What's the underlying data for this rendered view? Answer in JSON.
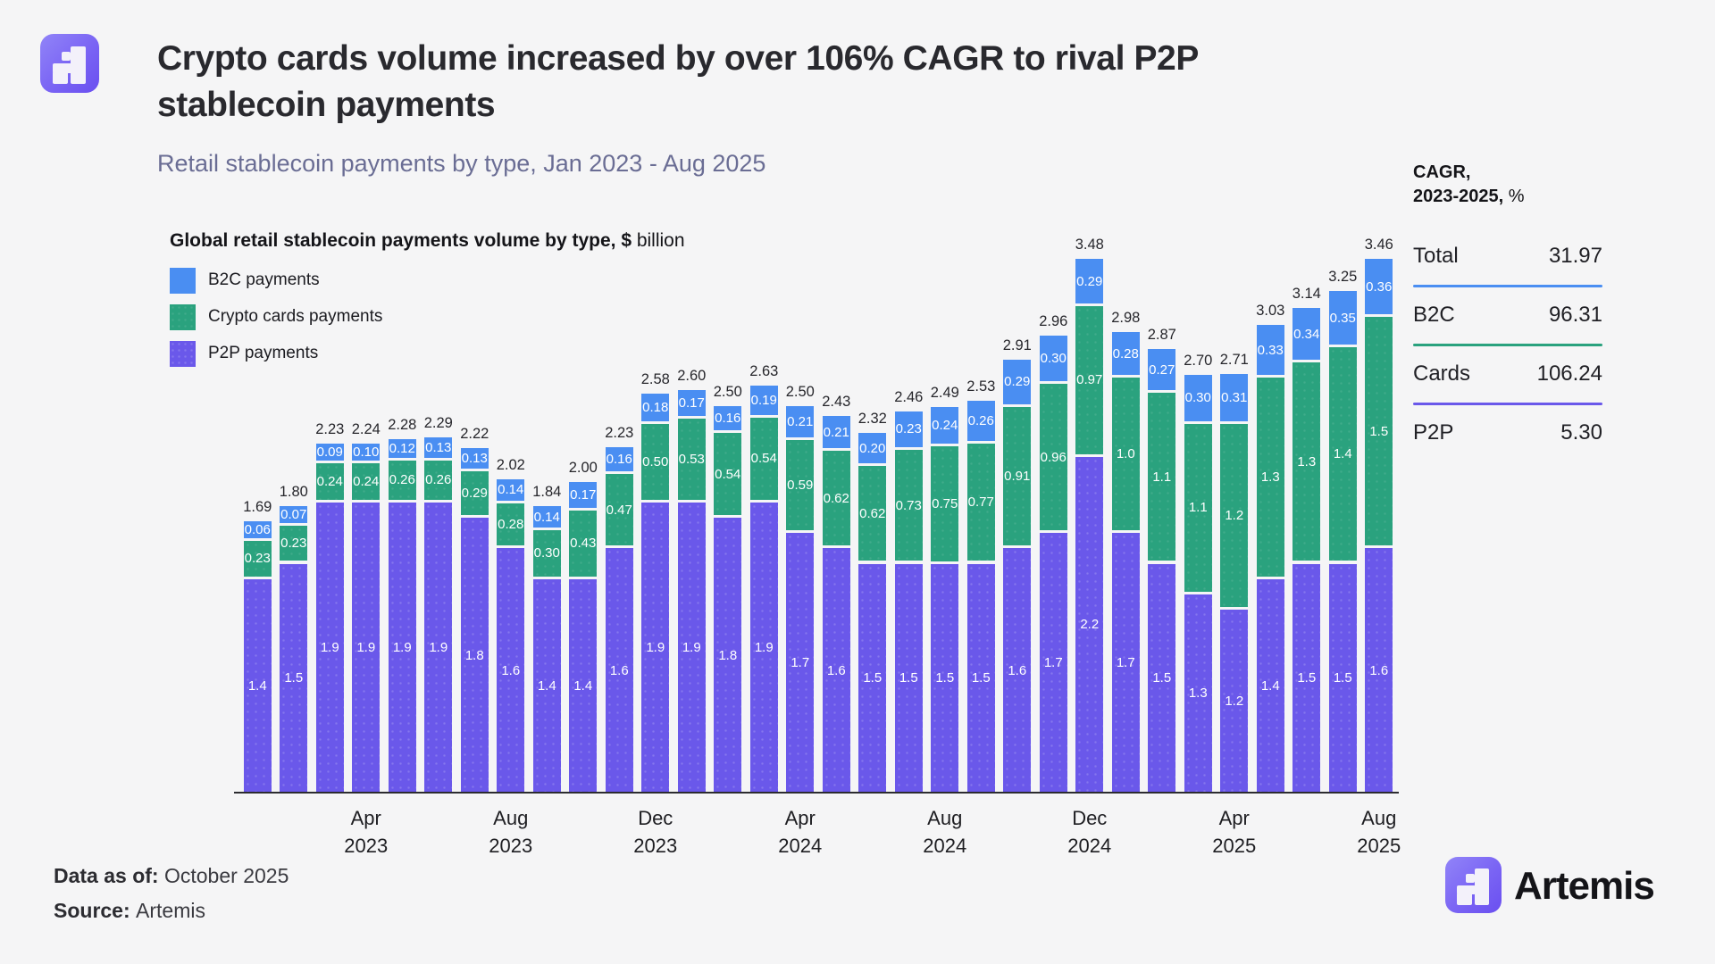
{
  "page": {
    "title_line1": "Crypto cards volume increased by over 106% CAGR to rival P2P",
    "title_line2": "stablecoin payments",
    "subtitle": "Retail stablecoin payments by type, Jan 2023 - Aug 2025"
  },
  "cagr_panel": {
    "header_line1": "CAGR,",
    "header_line2_bold": "2023-2025,",
    "header_line2_suffix": " %",
    "rows": [
      {
        "label": "Total",
        "value": "31.97",
        "divider_above": null
      },
      {
        "label": "B2C",
        "value": "96.31",
        "divider_above": "#4a8ef2"
      },
      {
        "label": "Cards",
        "value": "106.24",
        "divider_above": "#2aa27e"
      },
      {
        "label": "P2P",
        "value": "5.30",
        "divider_above": "#6a58ea"
      }
    ]
  },
  "chart_data": {
    "type": "bar",
    "stacked": true,
    "title_bold": "Global retail stablecoin payments volume by type, $",
    "title_suffix": " billion",
    "ylabel": "$ billion",
    "grid": false,
    "legend_position": "top-left",
    "legend": [
      {
        "key": "b2c",
        "name": "B2C payments",
        "color": "#4a8ef2"
      },
      {
        "key": "cards",
        "name": "Crypto cards payments",
        "color": "#2aa27e"
      },
      {
        "key": "p2p",
        "name": "P2P payments",
        "color": "#6a58ea"
      }
    ],
    "bars": [
      {
        "month": "Jan",
        "year": "2023",
        "total": "1.69",
        "b2c": "0.06",
        "cards": "0.23",
        "p2p": "1.4"
      },
      {
        "month": "Feb",
        "year": "2023",
        "total": "1.80",
        "b2c": "0.07",
        "cards": "0.23",
        "p2p": "1.5"
      },
      {
        "month": "Mar",
        "year": "2023",
        "total": "2.23",
        "b2c": "0.09",
        "cards": "0.24",
        "p2p": "1.9"
      },
      {
        "month": "Apr",
        "year": "2023",
        "total": "2.24",
        "b2c": "0.10",
        "cards": "0.24",
        "p2p": "1.9"
      },
      {
        "month": "May",
        "year": "2023",
        "total": "2.28",
        "b2c": "0.12",
        "cards": "0.26",
        "p2p": "1.9"
      },
      {
        "month": "Jun",
        "year": "2023",
        "total": "2.29",
        "b2c": "0.13",
        "cards": "0.26",
        "p2p": "1.9"
      },
      {
        "month": "Jul",
        "year": "2023",
        "total": "2.22",
        "b2c": "0.13",
        "cards": "0.29",
        "p2p": "1.8"
      },
      {
        "month": "Aug",
        "year": "2023",
        "total": "2.02",
        "b2c": "0.14",
        "cards": "0.28",
        "p2p": "1.6"
      },
      {
        "month": "Sep",
        "year": "2023",
        "total": "1.84",
        "b2c": "0.14",
        "cards": "0.30",
        "p2p": "1.4"
      },
      {
        "month": "Oct",
        "year": "2023",
        "total": "2.00",
        "b2c": "0.17",
        "cards": "0.43",
        "p2p": "1.4"
      },
      {
        "month": "Nov",
        "year": "2023",
        "total": "2.23",
        "b2c": "0.16",
        "cards": "0.47",
        "p2p": "1.6"
      },
      {
        "month": "Dec",
        "year": "2023",
        "total": "2.58",
        "b2c": "0.18",
        "cards": "0.50",
        "p2p": "1.9"
      },
      {
        "month": "Jan",
        "year": "2024",
        "total": "2.60",
        "b2c": "0.17",
        "cards": "0.53",
        "p2p": "1.9"
      },
      {
        "month": "Feb",
        "year": "2024",
        "total": "2.50",
        "b2c": "0.16",
        "cards": "0.54",
        "p2p": "1.8"
      },
      {
        "month": "Mar",
        "year": "2024",
        "total": "2.63",
        "b2c": "0.19",
        "cards": "0.54",
        "p2p": "1.9"
      },
      {
        "month": "Apr",
        "year": "2024",
        "total": "2.50",
        "b2c": "0.21",
        "cards": "0.59",
        "p2p": "1.7"
      },
      {
        "month": "May",
        "year": "2024",
        "total": "2.43",
        "b2c": "0.21",
        "cards": "0.62",
        "p2p": "1.6"
      },
      {
        "month": "Jun",
        "year": "2024",
        "total": "2.32",
        "b2c": "0.20",
        "cards": "0.62",
        "p2p": "1.5"
      },
      {
        "month": "Jul",
        "year": "2024",
        "total": "2.46",
        "b2c": "0.23",
        "cards": "0.73",
        "p2p": "1.5"
      },
      {
        "month": "Aug",
        "year": "2024",
        "total": "2.49",
        "b2c": "0.24",
        "cards": "0.75",
        "p2p": "1.5"
      },
      {
        "month": "Sep",
        "year": "2024",
        "total": "2.53",
        "b2c": "0.26",
        "cards": "0.77",
        "p2p": "1.5"
      },
      {
        "month": "Oct",
        "year": "2024",
        "total": "2.91",
        "b2c": "0.29",
        "cards": "0.91",
        "p2p": "1.6"
      },
      {
        "month": "Nov",
        "year": "2024",
        "total": "2.96",
        "b2c": "0.30",
        "cards": "0.96",
        "p2p": "1.7"
      },
      {
        "month": "Dec",
        "year": "2024",
        "total": "3.48",
        "b2c": "0.29",
        "cards": "0.97",
        "p2p": "2.2"
      },
      {
        "month": "Jan",
        "year": "2025",
        "total": "2.98",
        "b2c": "0.28",
        "cards": "1.0",
        "p2p": "1.7"
      },
      {
        "month": "Feb",
        "year": "2025",
        "total": "2.87",
        "b2c": "0.27",
        "cards": "1.1",
        "p2p": "1.5"
      },
      {
        "month": "Mar",
        "year": "2025",
        "total": "2.70",
        "b2c": "0.30",
        "cards": "1.1",
        "p2p": "1.3"
      },
      {
        "month": "Apr",
        "year": "2025",
        "total": "2.71",
        "b2c": "0.31",
        "cards": "1.2",
        "p2p": "1.2"
      },
      {
        "month": "May",
        "year": "2025",
        "total": "3.03",
        "b2c": "0.33",
        "cards": "1.3",
        "p2p": "1.4"
      },
      {
        "month": "Jun",
        "year": "2025",
        "total": "3.14",
        "b2c": "0.34",
        "cards": "1.3",
        "p2p": "1.5"
      },
      {
        "month": "Jul",
        "year": "2025",
        "total": "3.25",
        "b2c": "0.35",
        "cards": "1.4",
        "p2p": "1.5"
      },
      {
        "month": "Aug",
        "year": "2025",
        "total": "3.46",
        "b2c": "0.36",
        "cards": "1.5",
        "p2p": "1.6"
      }
    ],
    "x_ticks": [
      {
        "bar_index": 3,
        "month": "Apr",
        "year": "2023"
      },
      {
        "bar_index": 7,
        "month": "Aug",
        "year": "2023"
      },
      {
        "bar_index": 11,
        "month": "Dec",
        "year": "2023"
      },
      {
        "bar_index": 15,
        "month": "Apr",
        "year": "2024"
      },
      {
        "bar_index": 19,
        "month": "Aug",
        "year": "2024"
      },
      {
        "bar_index": 23,
        "month": "Dec",
        "year": "2024"
      },
      {
        "bar_index": 27,
        "month": "Apr",
        "year": "2025"
      },
      {
        "bar_index": 31,
        "month": "Aug",
        "year": "2025"
      }
    ]
  },
  "footer": {
    "data_as_of_label": "Data as of: ",
    "data_as_of_value": "October 2025",
    "source_label": "Source: ",
    "source_value": "Artemis",
    "brand_wordmark": "Artemis"
  },
  "theme": {
    "background": "#f5f5f6",
    "b2c_blue": "#4a8ef2",
    "cards_green": "#2aa27e",
    "p2p_purple": "#6a58ea",
    "subtitle_color": "#6a6d94",
    "logo_gradient_start": "#9184f8",
    "logo_gradient_end": "#6a4ff0"
  }
}
